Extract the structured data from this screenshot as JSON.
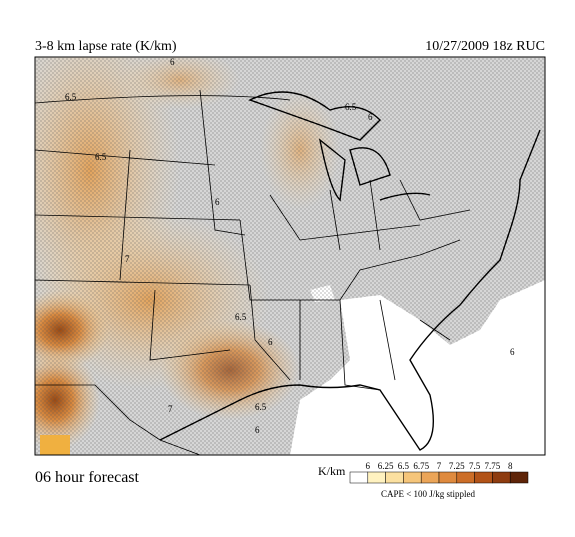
{
  "header": {
    "title": "3-8 km lapse rate (K/km)",
    "valid": "10/27/2009  18z  RUC"
  },
  "footer": {
    "forecast": "06 hour forecast",
    "note": "CAPE < 100 J/kg stippled"
  },
  "colorbar": {
    "unit": "K/km",
    "labels": [
      "6",
      "6.25",
      "6.5",
      "6.75",
      "7",
      "7.25",
      "7.5",
      "7.75",
      "8"
    ],
    "colors": [
      "#ffffff",
      "#fff2c0",
      "#fbe0a0",
      "#f5c57a",
      "#eba558",
      "#df8a3e",
      "#cc6e28",
      "#b25318",
      "#8e3c10",
      "#5e2408"
    ]
  },
  "map": {
    "contour_labels": [
      "6.5",
      "6.5",
      "6",
      "6",
      "7",
      "6.5",
      "6",
      "6.5",
      "6",
      "7",
      "6.5",
      "6",
      "6"
    ]
  }
}
